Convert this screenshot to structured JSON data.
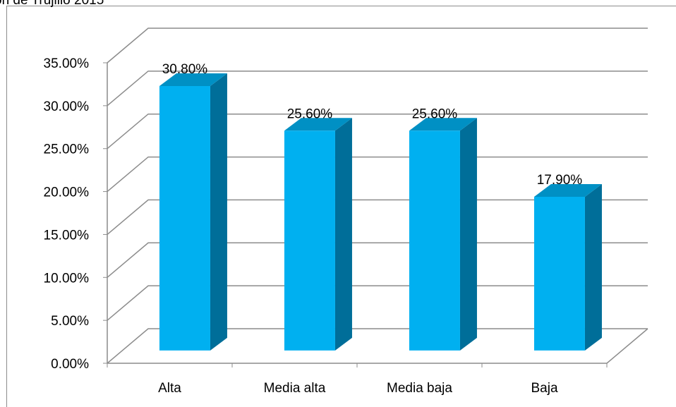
{
  "chart_data": {
    "type": "bar3d",
    "title": "ón de Trujillo 2015",
    "categories": [
      "Alta",
      "Media alta",
      "Media baja",
      "Baja"
    ],
    "values": [
      30.8,
      25.6,
      25.6,
      17.9
    ],
    "value_labels": [
      "30.80%",
      "25.60%",
      "25.60%",
      "17.90%"
    ],
    "color": "#00b0f0",
    "ylim": [
      0,
      35
    ],
    "yticks": [
      {
        "value": 0,
        "label": "0.00%"
      },
      {
        "value": 5,
        "label": "5.00%"
      },
      {
        "value": 10,
        "label": "10.00%"
      },
      {
        "value": 15,
        "label": "15.00%"
      },
      {
        "value": 20,
        "label": "20.00%"
      },
      {
        "value": 25,
        "label": "25.00%"
      },
      {
        "value": 30,
        "label": "30.00%"
      },
      {
        "value": 35,
        "label": "35.00%"
      }
    ],
    "grid": true
  }
}
